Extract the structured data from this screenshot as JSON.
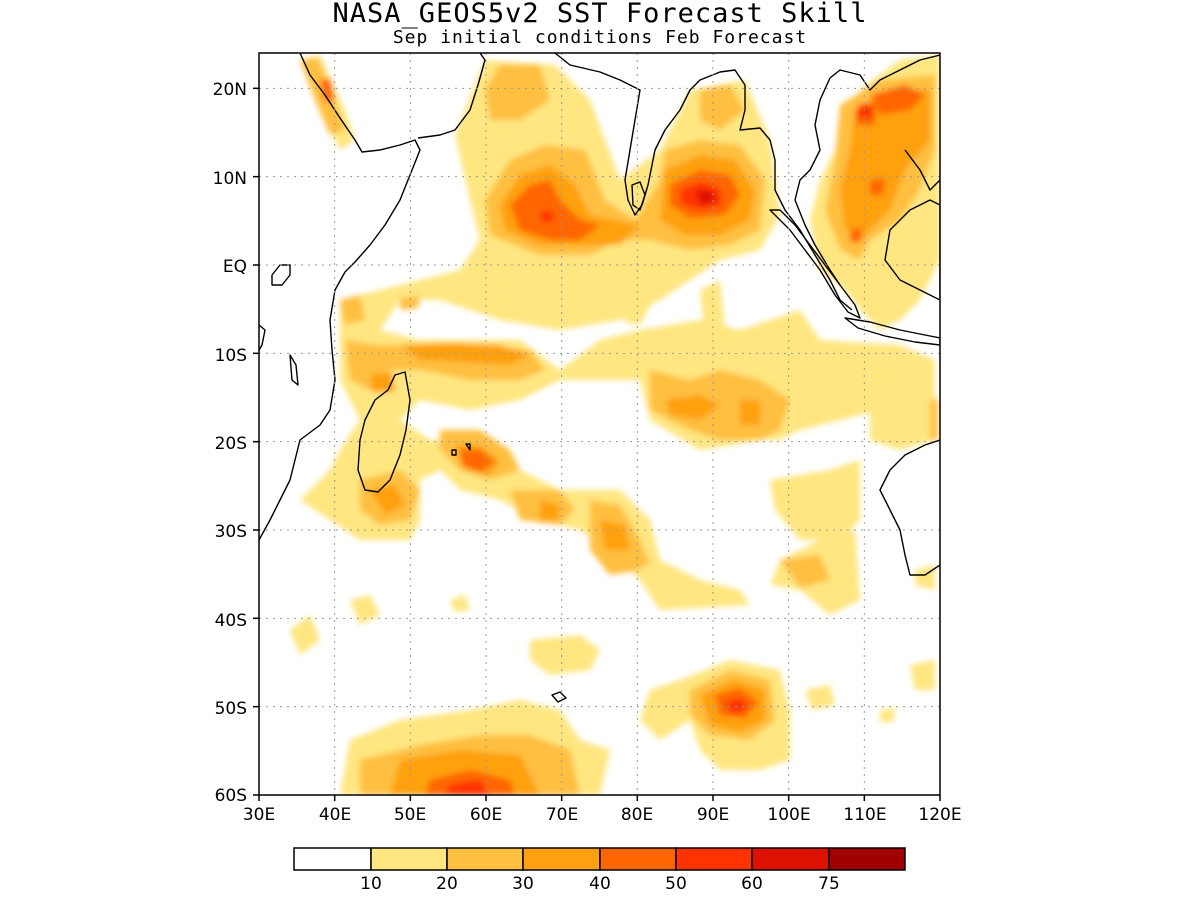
{
  "title": "NASA_GEOS5v2 SST Forecast Skill",
  "subtitle": "Sep initial conditions  Feb Forecast",
  "map": {
    "lon_range": [
      30,
      120
    ],
    "lat_range": [
      -60,
      24
    ],
    "lon_ticks": [
      "30E",
      "40E",
      "50E",
      "60E",
      "70E",
      "80E",
      "90E",
      "100E",
      "110E",
      "120E"
    ],
    "lat_ticks": [
      "20N",
      "10N",
      "EQ",
      "10S",
      "20S",
      "30S",
      "40S",
      "50S",
      "60S"
    ],
    "grid": true
  },
  "colorbar": {
    "levels": [
      "10",
      "20",
      "30",
      "40",
      "50",
      "60",
      "75"
    ],
    "colors": [
      "#ffffff",
      "#ffe680",
      "#ffbf40",
      "#ffa010",
      "#ff6600",
      "#ff3300",
      "#dd1100",
      "#a00000"
    ]
  }
}
